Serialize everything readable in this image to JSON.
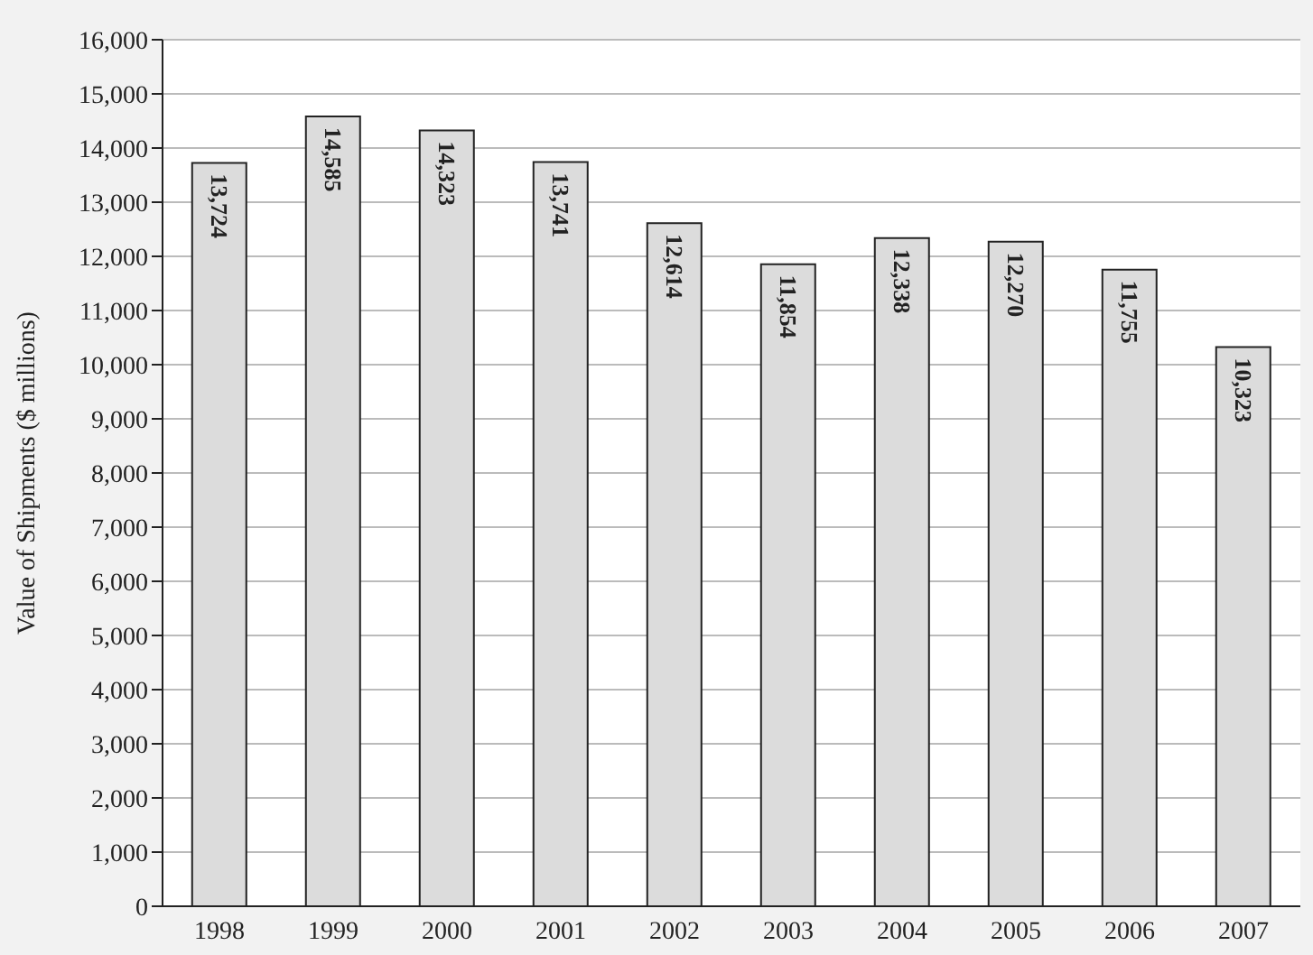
{
  "chart_data": {
    "type": "bar",
    "ylabel": "Value of Shipments ($ millions)",
    "categories": [
      "1998",
      "1999",
      "2000",
      "2001",
      "2002",
      "2003",
      "2004",
      "2005",
      "2006",
      "2007"
    ],
    "values": [
      13724,
      14585,
      14323,
      13741,
      12614,
      11854,
      12338,
      12270,
      11755,
      10323
    ],
    "value_labels": [
      "13,724",
      "14,585",
      "14,323",
      "13,741",
      "12,614",
      "11,854",
      "12,338",
      "12,270",
      "11,755",
      "10,323"
    ],
    "color": "#dcdcdc",
    "ylim": [
      0,
      16000
    ],
    "yticks": [
      {
        "value": 0,
        "label": "0"
      },
      {
        "value": 1000,
        "label": "1,000"
      },
      {
        "value": 2000,
        "label": "2,000"
      },
      {
        "value": 3000,
        "label": "3,000"
      },
      {
        "value": 4000,
        "label": "4,000"
      },
      {
        "value": 5000,
        "label": "5,000"
      },
      {
        "value": 6000,
        "label": "6,000"
      },
      {
        "value": 7000,
        "label": "7,000"
      },
      {
        "value": 8000,
        "label": "8,000"
      },
      {
        "value": 9000,
        "label": "9,000"
      },
      {
        "value": 10000,
        "label": "10,000"
      },
      {
        "value": 11000,
        "label": "11,000"
      },
      {
        "value": 12000,
        "label": "12,000"
      },
      {
        "value": 13000,
        "label": "13,000"
      },
      {
        "value": 14000,
        "label": "14,000"
      },
      {
        "value": 15000,
        "label": "15,000"
      },
      {
        "value": 16000,
        "label": "16,000"
      }
    ],
    "grid": "y",
    "legend": false
  }
}
